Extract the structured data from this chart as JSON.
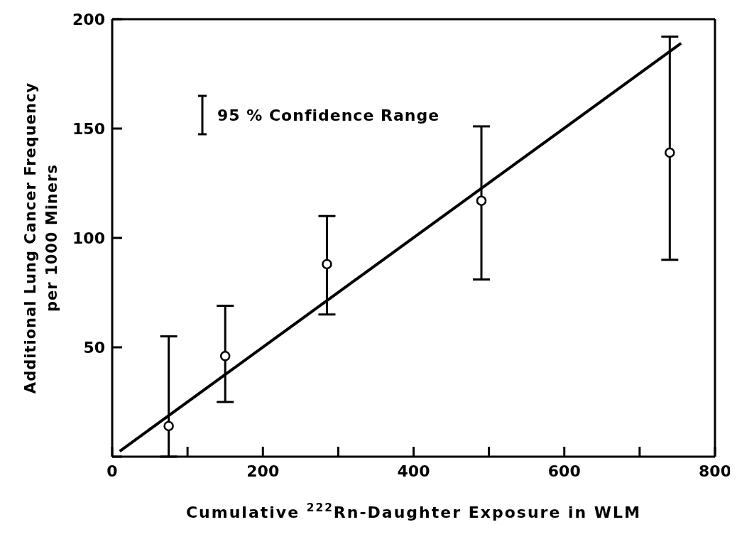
{
  "chart_data": {
    "type": "scatter",
    "xlabel": "Cumulative $^{222}$Rn-Daughter Exposure in WLM",
    "ylabel": "Additional Lung Cancer Frequency\nper 1000 Miners",
    "annotations": [
      "95 % Confidence Range"
    ],
    "series": [
      {
        "color": "#000000",
        "x": [
          75,
          150,
          285,
          490,
          740
        ],
        "values": [
          14,
          46,
          88,
          117,
          139
        ],
        "errors": [
          [
            0,
            55
          ],
          [
            25,
            69
          ],
          [
            65,
            110
          ],
          [
            81,
            151
          ],
          [
            90,
            192
          ]
        ],
        "marker": "circle"
      },
      {
        "type": "line",
        "color": "#000000",
        "x": [
          10,
          755
        ],
        "values": [
          2.5,
          189
        ],
        "marker": "none",
        "line_style": "solid"
      }
    ],
    "xlim": [
      0,
      800
    ],
    "xticks": [
      0,
      {
        "value": 100,
        "label": null
      },
      200,
      {
        "value": 300,
        "label": null
      },
      400,
      {
        "value": 500,
        "label": null
      },
      600,
      {
        "value": 700,
        "label": null
      },
      800
    ],
    "ylim": [
      0,
      200
    ],
    "yticks": [
      {
        "value": 0,
        "label": null
      },
      50,
      100,
      150,
      200
    ],
    "grid": false,
    "legend": false
  }
}
